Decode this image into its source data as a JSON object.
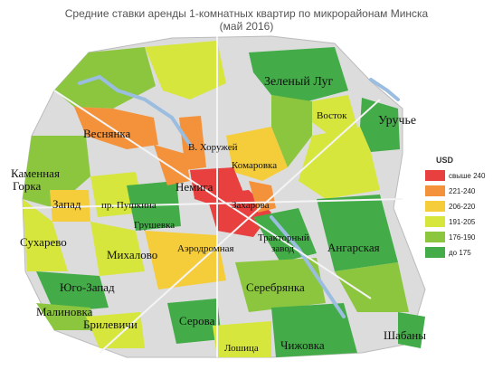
{
  "title": "Средние ставки аренды 1-комнатных квартир по микрорайонам Минска",
  "subtitle": "(май 2016)",
  "colors": {
    "c240plus": "#e83f3f",
    "c221_240": "#f3923a",
    "c206_220": "#f5cd3a",
    "c191_205": "#d6e63c",
    "c176_190": "#8cc63f",
    "c175": "#43ac48",
    "road": "#f4f4f4",
    "water": "#9bbde0",
    "base": "#dcdcdc"
  },
  "legend": {
    "title": "USD",
    "items": [
      {
        "label": "свыше 240",
        "color": "#e83f3f"
      },
      {
        "label": "221-240",
        "color": "#f3923a"
      },
      {
        "label": "206-220",
        "color": "#f5cd3a"
      },
      {
        "label": "191-205",
        "color": "#d6e63c"
      },
      {
        "label": "176-190",
        "color": "#8cc63f"
      },
      {
        "label": "до 175",
        "color": "#43ac48"
      }
    ]
  },
  "districts": {
    "zeleny_lug": "Зеленый Луг",
    "vostok": "Восток",
    "uruchye": "Уручье",
    "vesnyanka": "Веснянка",
    "v_khoruzhey": "В. Хоружей",
    "komarovka": "Комаровка",
    "kamennaya": "Каменная",
    "gorka": "Горка",
    "nemiga": "Немига",
    "zapad": "Запад",
    "pr_pushkina": "пр. Пушкина",
    "zakharova": "Захарова",
    "grushevka": "Грушевка",
    "traktorny_1": "Тракторный",
    "traktorny_2": "завод",
    "sukharevo": "Сухарево",
    "aerodromnaya": "Аэродромная",
    "angarskaya": "Ангарская",
    "mikhalovo": "Михалово",
    "yugo_zapad": "Юго-Запад",
    "serebryanka": "Серебрянка",
    "malinovka": "Малиновка",
    "brilevichi": "Брилевичи",
    "serova": "Серова",
    "shabany": "Шабаны",
    "loshitsa": "Лошица",
    "chizhovka": "Чижовка"
  }
}
